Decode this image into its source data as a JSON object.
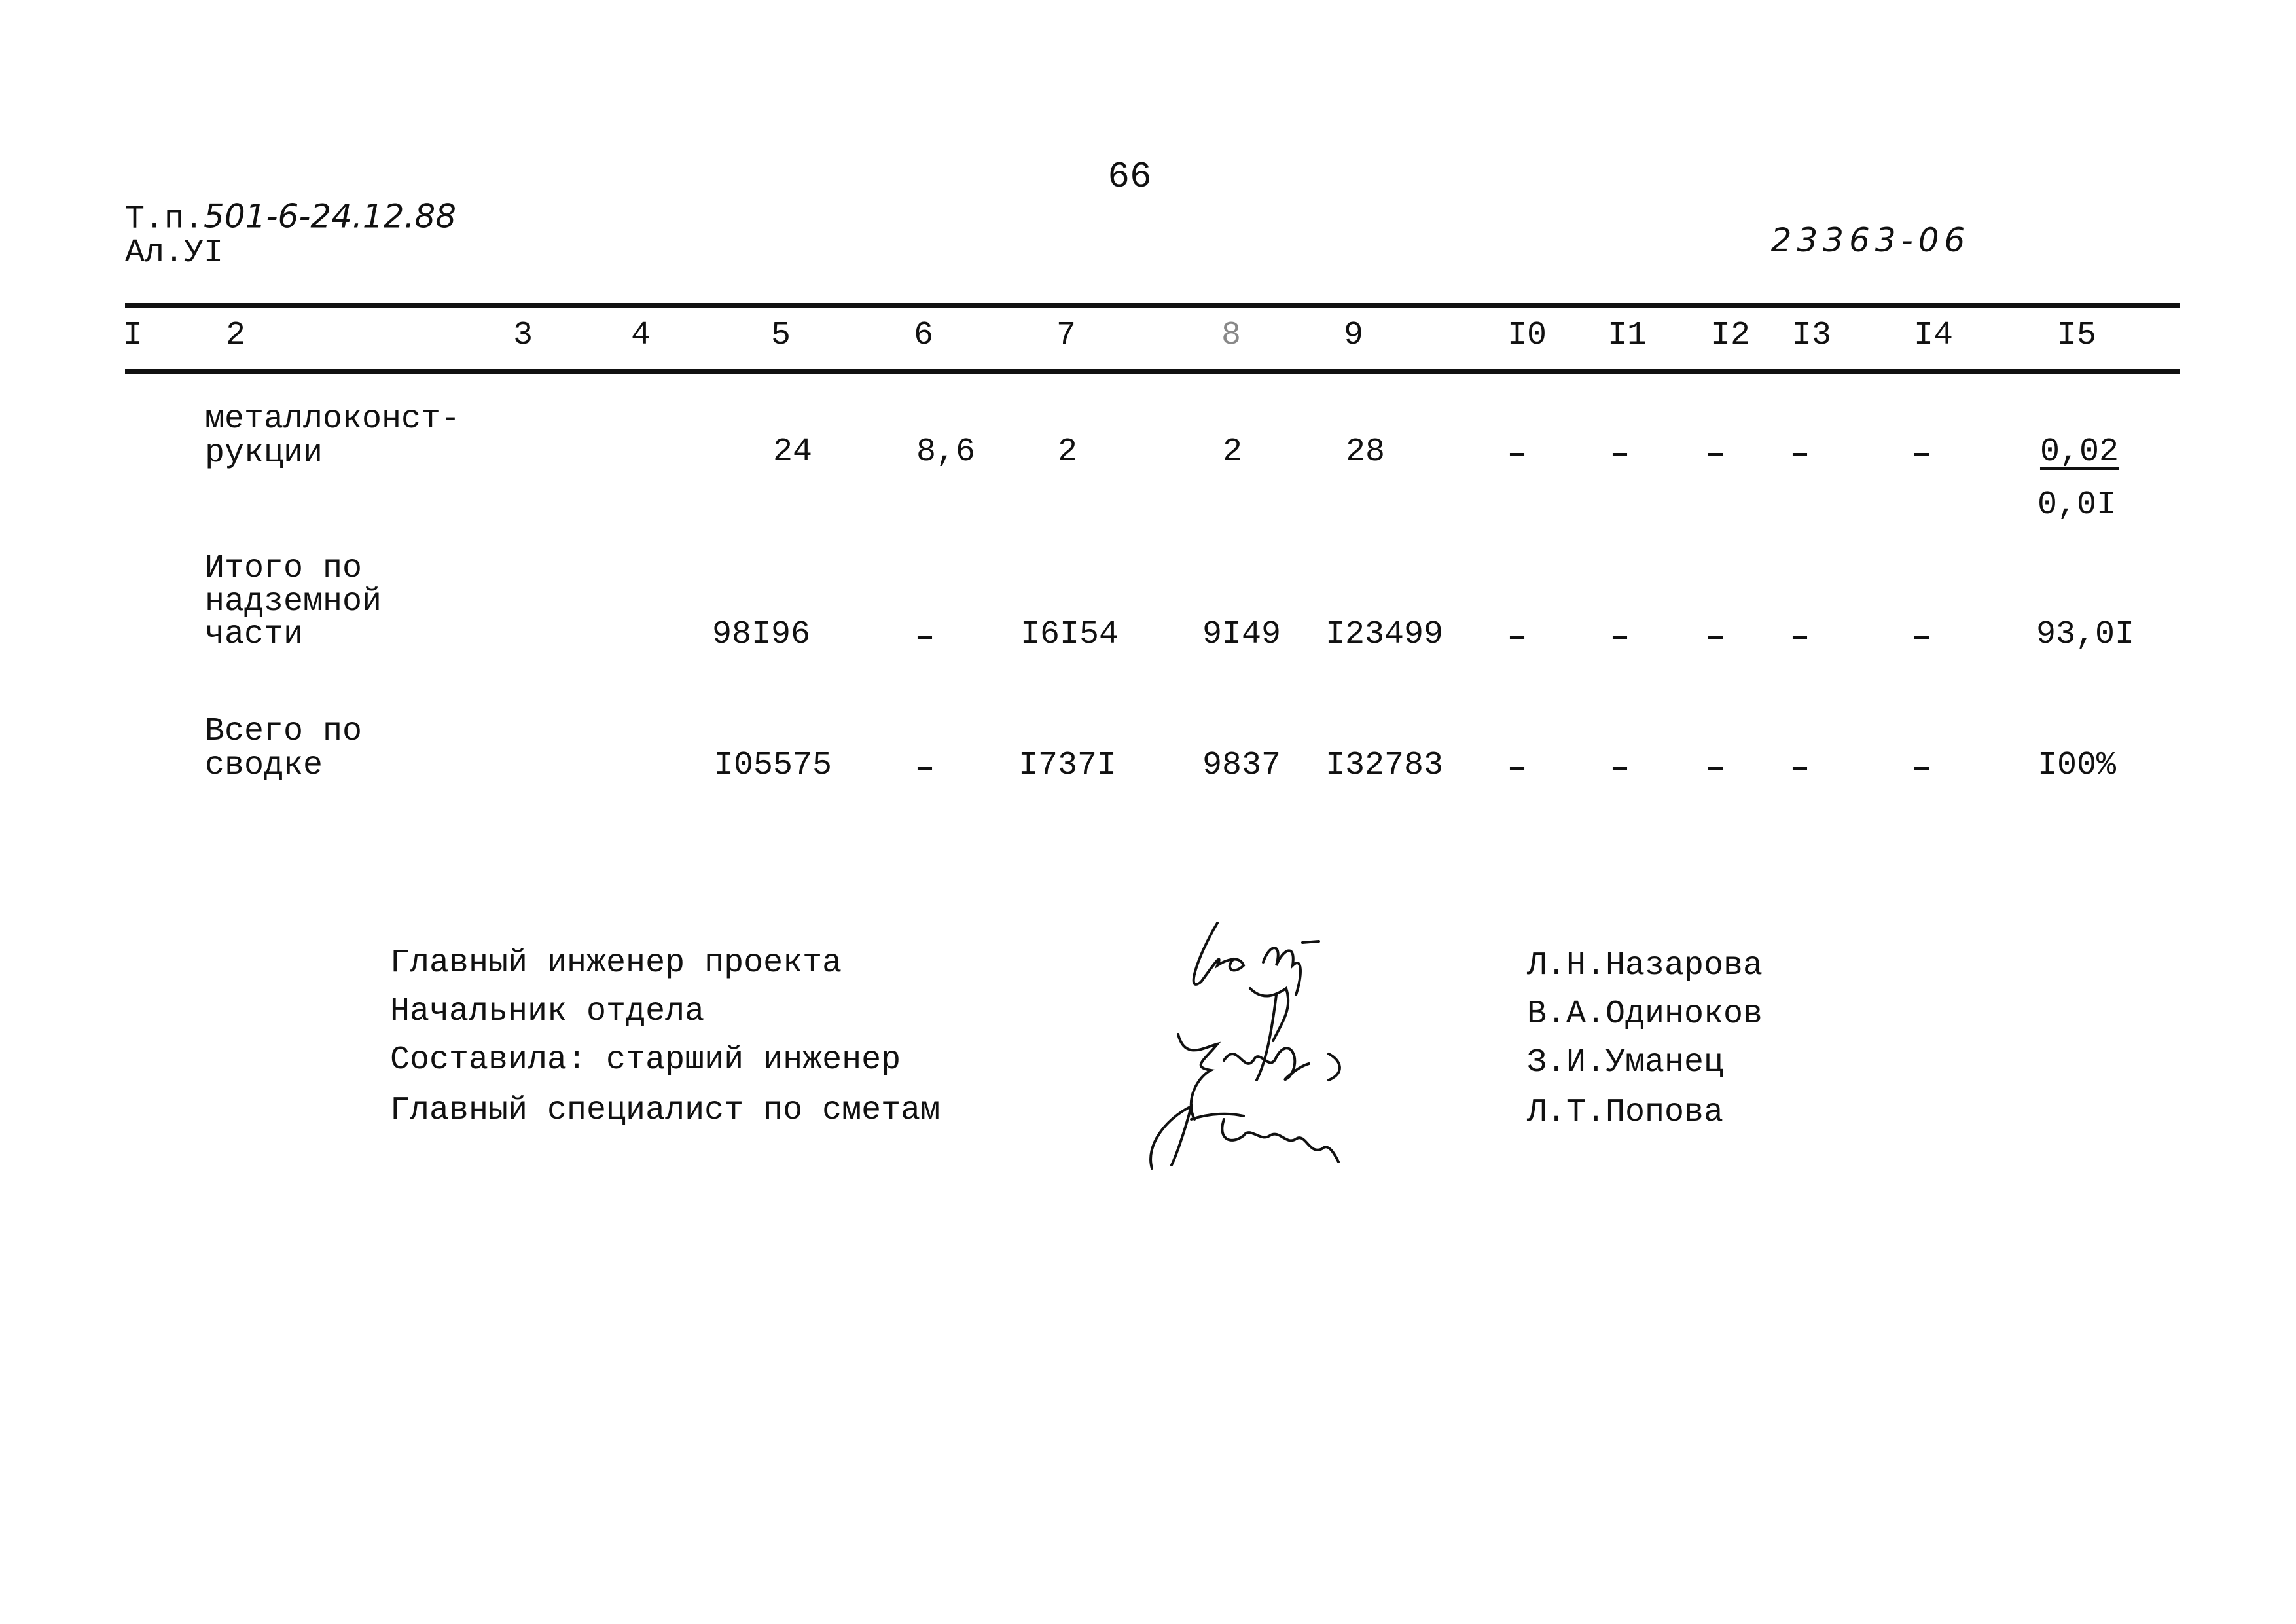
{
  "page_number": "66",
  "header": {
    "project_prefix": "Т.п.",
    "project_code_handwritten": "501-6-24.12.88",
    "album": "Ал.УI",
    "document_number": "23363-06"
  },
  "table": {
    "column_numbers": [
      "I",
      "2",
      "3",
      "4",
      "5",
      "6",
      "7",
      "8",
      "9",
      "I0",
      "I1",
      "I2",
      "I3",
      "I4",
      "I5"
    ],
    "rows": [
      {
        "name_lines": [
          "металлоконст-",
          "рукции"
        ],
        "values": {
          "c5": "24",
          "c6": "8,6",
          "c7": "2",
          "c8": "2",
          "c9": "28",
          "c10": "–",
          "c11": "–",
          "c12": "–",
          "c13": "–",
          "c14": "–",
          "c15": "0,02",
          "c15_second": "0,0I"
        }
      },
      {
        "name_lines": [
          "Итого по",
          "надземной",
          "части"
        ],
        "values": {
          "c5": "98I96",
          "c6": "–",
          "c7": "I6I54",
          "c8": "9I49",
          "c9": "I23499",
          "c10": "–",
          "c11": "–",
          "c12": "–",
          "c13": "–",
          "c14": "–",
          "c15": "93,0I"
        }
      },
      {
        "name_lines": [
          "Всего по",
          "сводке"
        ],
        "values": {
          "c5": "I05575",
          "c6": "–",
          "c7": "I737I",
          "c8": "9837",
          "c9": "I32783",
          "c10": "–",
          "c11": "–",
          "c12": "–",
          "c13": "–",
          "c14": "–",
          "c15": "I00%"
        }
      }
    ]
  },
  "signatures": [
    {
      "position": "Главный инженер проекта",
      "name": "Л.Н.Назарова"
    },
    {
      "position": "Начальник отдела",
      "name": "В.А.Одиноков"
    },
    {
      "position": "Составила: старший инженер",
      "name": "З.И.Уманец"
    },
    {
      "position": "Главный специалист по сметам",
      "name": "Л.Т.Попова"
    }
  ]
}
